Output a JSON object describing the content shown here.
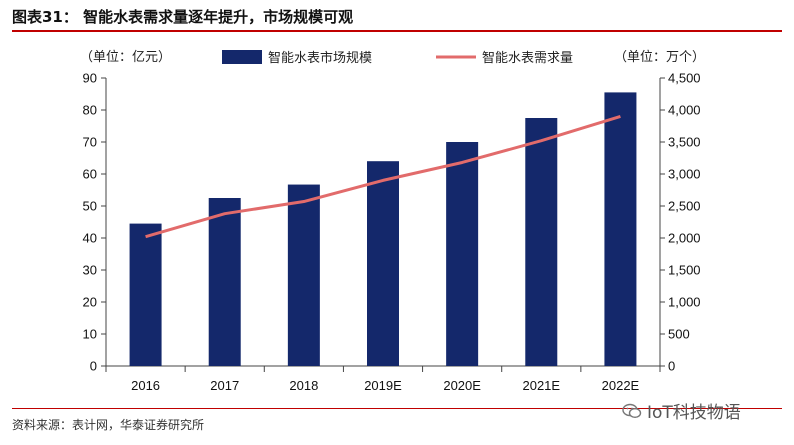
{
  "header": {
    "title": "图表31：   智能水表需求量逐年提升，市场规模可观"
  },
  "chart_data": {
    "type": "bar+line",
    "categories": [
      "2016",
      "2017",
      "2018",
      "2019E",
      "2020E",
      "2021E",
      "2022E"
    ],
    "series": [
      {
        "name": "智能水表市场规模",
        "type": "bar",
        "axis": "left",
        "values": [
          44.5,
          52.5,
          56.7,
          64.0,
          70.0,
          77.5,
          85.5
        ]
      },
      {
        "name": "智能水表需求量",
        "type": "line",
        "axis": "right",
        "values": [
          2020,
          2380,
          2570,
          2900,
          3180,
          3520,
          3900
        ]
      }
    ],
    "left_axis": {
      "unit_label": "（单位：亿元）",
      "ylim": [
        0,
        90
      ],
      "ticks": [
        "0",
        "10",
        "20",
        "30",
        "40",
        "50",
        "60",
        "70",
        "80",
        "90"
      ]
    },
    "right_axis": {
      "unit_label": "（单位：万个）",
      "ylim": [
        0,
        4500
      ],
      "ticks": [
        "0",
        "500",
        "1,000",
        "1,500",
        "2,000",
        "2,500",
        "3,000",
        "3,500",
        "4,000",
        "4,500"
      ]
    },
    "legend_position": "top-center",
    "colors": {
      "bar": "#14286b",
      "line": "#e26b6b",
      "axis": "#444444"
    }
  },
  "footer": {
    "source": "资料来源：表计网，华泰证券研究所",
    "watermark": "IoT科技物语",
    "watermark_icon": "wechat-icon"
  }
}
